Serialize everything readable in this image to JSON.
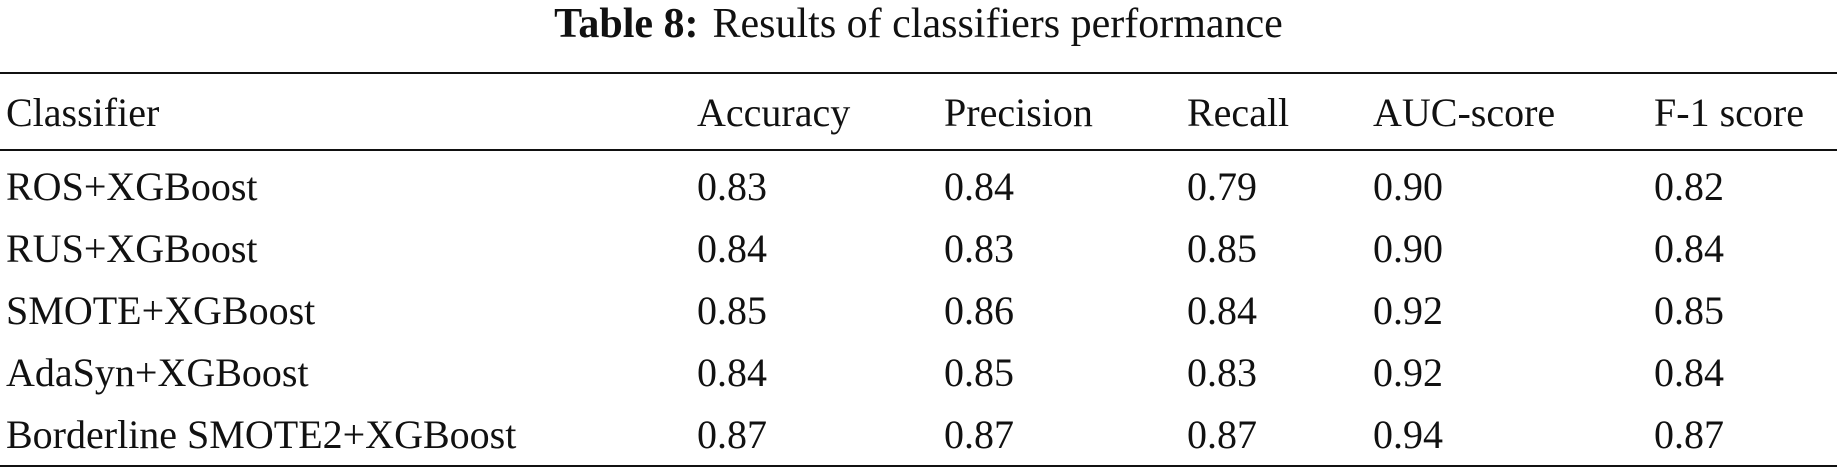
{
  "caption": {
    "label": "Table 8:",
    "text": "Results of classifiers performance"
  },
  "table": {
    "header": [
      "Classifier",
      "Accuracy",
      "Precision",
      "Recall",
      "AUC-score",
      "F-1 score"
    ],
    "rows": [
      [
        "ROS+XGBoost",
        "0.83",
        "0.84",
        "0.79",
        "0.90",
        "0.82"
      ],
      [
        "RUS+XGBoost",
        "0.84",
        "0.83",
        "0.85",
        "0.90",
        "0.84"
      ],
      [
        "SMOTE+XGBoost",
        "0.85",
        "0.86",
        "0.84",
        "0.92",
        "0.85"
      ],
      [
        "AdaSyn+XGBoost",
        "0.84",
        "0.85",
        "0.83",
        "0.92",
        "0.84"
      ],
      [
        "Borderline SMOTE2+XGBoost",
        "0.87",
        "0.87",
        "0.87",
        "0.94",
        "0.87"
      ]
    ]
  }
}
